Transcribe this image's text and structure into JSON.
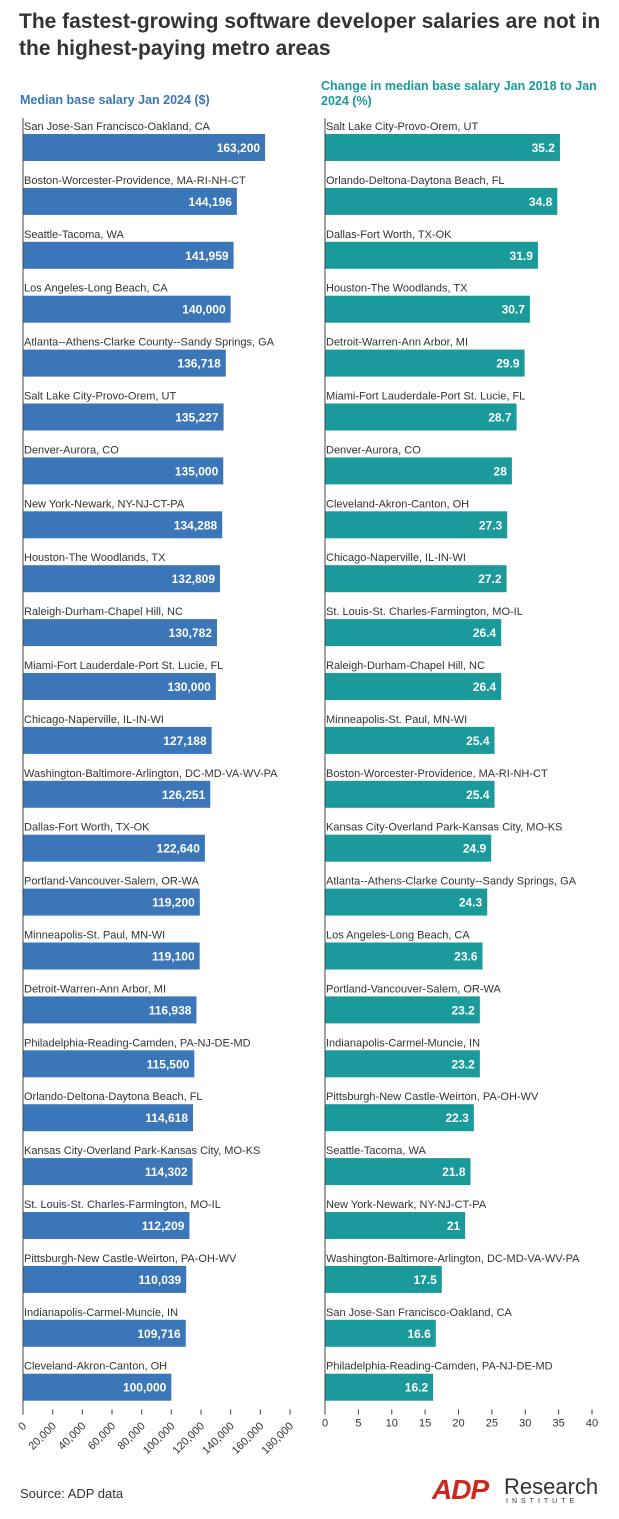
{
  "title": "The fastest-growing software developer salaries are not in the highest-paying metro areas",
  "source": "Source: ADP data",
  "logo": {
    "brand": "ADP",
    "research": "Research",
    "institute": "INSTITUTE"
  },
  "colors": {
    "left_bar": "#3a76b8",
    "right_bar": "#1a9a9a"
  },
  "chart_data": [
    {
      "type": "bar",
      "orientation": "horizontal",
      "title": "Median base salary Jan 2024  ($)",
      "xlim": [
        0,
        180000
      ],
      "ticks": [
        "0",
        "20,000",
        "40,000",
        "60,000",
        "80,000",
        "100,000",
        "120,000",
        "140,000",
        "160,000",
        "180,000"
      ],
      "tick_values": [
        0,
        20000,
        40000,
        60000,
        80000,
        100000,
        120000,
        140000,
        160000,
        180000
      ],
      "categories": [
        "San Jose-San Francisco-Oakland, CA",
        "Boston-Worcester-Providence, MA-RI-NH-CT",
        "Seattle-Tacoma, WA",
        "Los Angeles-Long Beach, CA",
        "Atlanta--Athens-Clarke County--Sandy Springs, GA",
        "Salt Lake City-Provo-Orem, UT",
        "Denver-Aurora, CO",
        "New York-Newark, NY-NJ-CT-PA",
        "Houston-The Woodlands, TX",
        "Raleigh-Durham-Chapel Hill, NC",
        "Miami-Fort Lauderdale-Port St. Lucie, FL",
        "Chicago-Naperville, IL-IN-WI",
        "Washington-Baltimore-Arlington, DC-MD-VA-WV-PA",
        "Dallas-Fort Worth, TX-OK",
        "Portland-Vancouver-Salem, OR-WA",
        "Minneapolis-St. Paul, MN-WI",
        "Detroit-Warren-Ann Arbor, MI",
        "Philadelphia-Reading-Camden, PA-NJ-DE-MD",
        "Orlando-Deltona-Daytona Beach, FL",
        "Kansas City-Overland Park-Kansas City, MO-KS",
        "St. Louis-St. Charles-Farmington, MO-IL",
        "Pittsburgh-New Castle-Weirton, PA-OH-WV",
        "Indianapolis-Carmel-Muncie, IN",
        "Cleveland-Akron-Canton, OH"
      ],
      "values": [
        163200,
        144196,
        141959,
        140000,
        136718,
        135227,
        135000,
        134288,
        132809,
        130782,
        130000,
        127188,
        126251,
        122640,
        119200,
        119100,
        116938,
        115500,
        114618,
        114302,
        112209,
        110039,
        109716,
        100000
      ],
      "labels": [
        "163,200",
        "144,196",
        "141,959",
        "140,000",
        "136,718",
        "135,227",
        "135,000",
        "134,288",
        "132,809",
        "130,782",
        "130,000",
        "127,188",
        "126,251",
        "122,640",
        "119,200",
        "119,100",
        "116,938",
        "115,500",
        "114,618",
        "114,302",
        "112,209",
        "110,039",
        "109,716",
        "100,000"
      ]
    },
    {
      "type": "bar",
      "orientation": "horizontal",
      "title": "Change in median base salary Jan 2018 to Jan 2024 (%)",
      "xlim": [
        0,
        40
      ],
      "ticks": [
        "0",
        "5",
        "10",
        "15",
        "20",
        "25",
        "30",
        "35",
        "40"
      ],
      "tick_values": [
        0,
        5,
        10,
        15,
        20,
        25,
        30,
        35,
        40
      ],
      "categories": [
        "Salt Lake City-Provo-Orem, UT",
        "Orlando-Deltona-Daytona Beach, FL",
        "Dallas-Fort Worth, TX-OK",
        "Houston-The Woodlands, TX",
        "Detroit-Warren-Ann Arbor, MI",
        "Miami-Fort Lauderdale-Port St. Lucie, FL",
        "Denver-Aurora, CO",
        "Cleveland-Akron-Canton, OH",
        "Chicago-Naperville, IL-IN-WI",
        "St. Louis-St. Charles-Farmington, MO-IL",
        "Raleigh-Durham-Chapel Hill, NC",
        "Minneapolis-St. Paul, MN-WI",
        "Boston-Worcester-Providence, MA-RI-NH-CT",
        "Kansas City-Overland Park-Kansas City, MO-KS",
        "Atlanta--Athens-Clarke County--Sandy Springs, GA",
        "Los Angeles-Long Beach, CA",
        "Portland-Vancouver-Salem, OR-WA",
        "Indianapolis-Carmel-Muncie, IN",
        "Pittsburgh-New Castle-Weirton, PA-OH-WV",
        "Seattle-Tacoma, WA",
        "New York-Newark, NY-NJ-CT-PA",
        "Washington-Baltimore-Arlington, DC-MD-VA-WV-PA",
        "San Jose-San Francisco-Oakland, CA",
        "Philadelphia-Reading-Camden, PA-NJ-DE-MD"
      ],
      "values": [
        35.2,
        34.8,
        31.9,
        30.7,
        29.9,
        28.7,
        28,
        27.3,
        27.2,
        26.4,
        26.4,
        25.4,
        25.4,
        24.9,
        24.3,
        23.6,
        23.2,
        23.2,
        22.3,
        21.8,
        21,
        17.5,
        16.6,
        16.2
      ],
      "labels": [
        "35.2",
        "34.8",
        "31.9",
        "30.7",
        "29.9",
        "28.7",
        "28",
        "27.3",
        "27.2",
        "26.4",
        "26.4",
        "25.4",
        "25.4",
        "24.9",
        "24.3",
        "23.6",
        "23.2",
        "23.2",
        "22.3",
        "21.8",
        "21",
        "17.5",
        "16.6",
        "16.2"
      ]
    }
  ]
}
